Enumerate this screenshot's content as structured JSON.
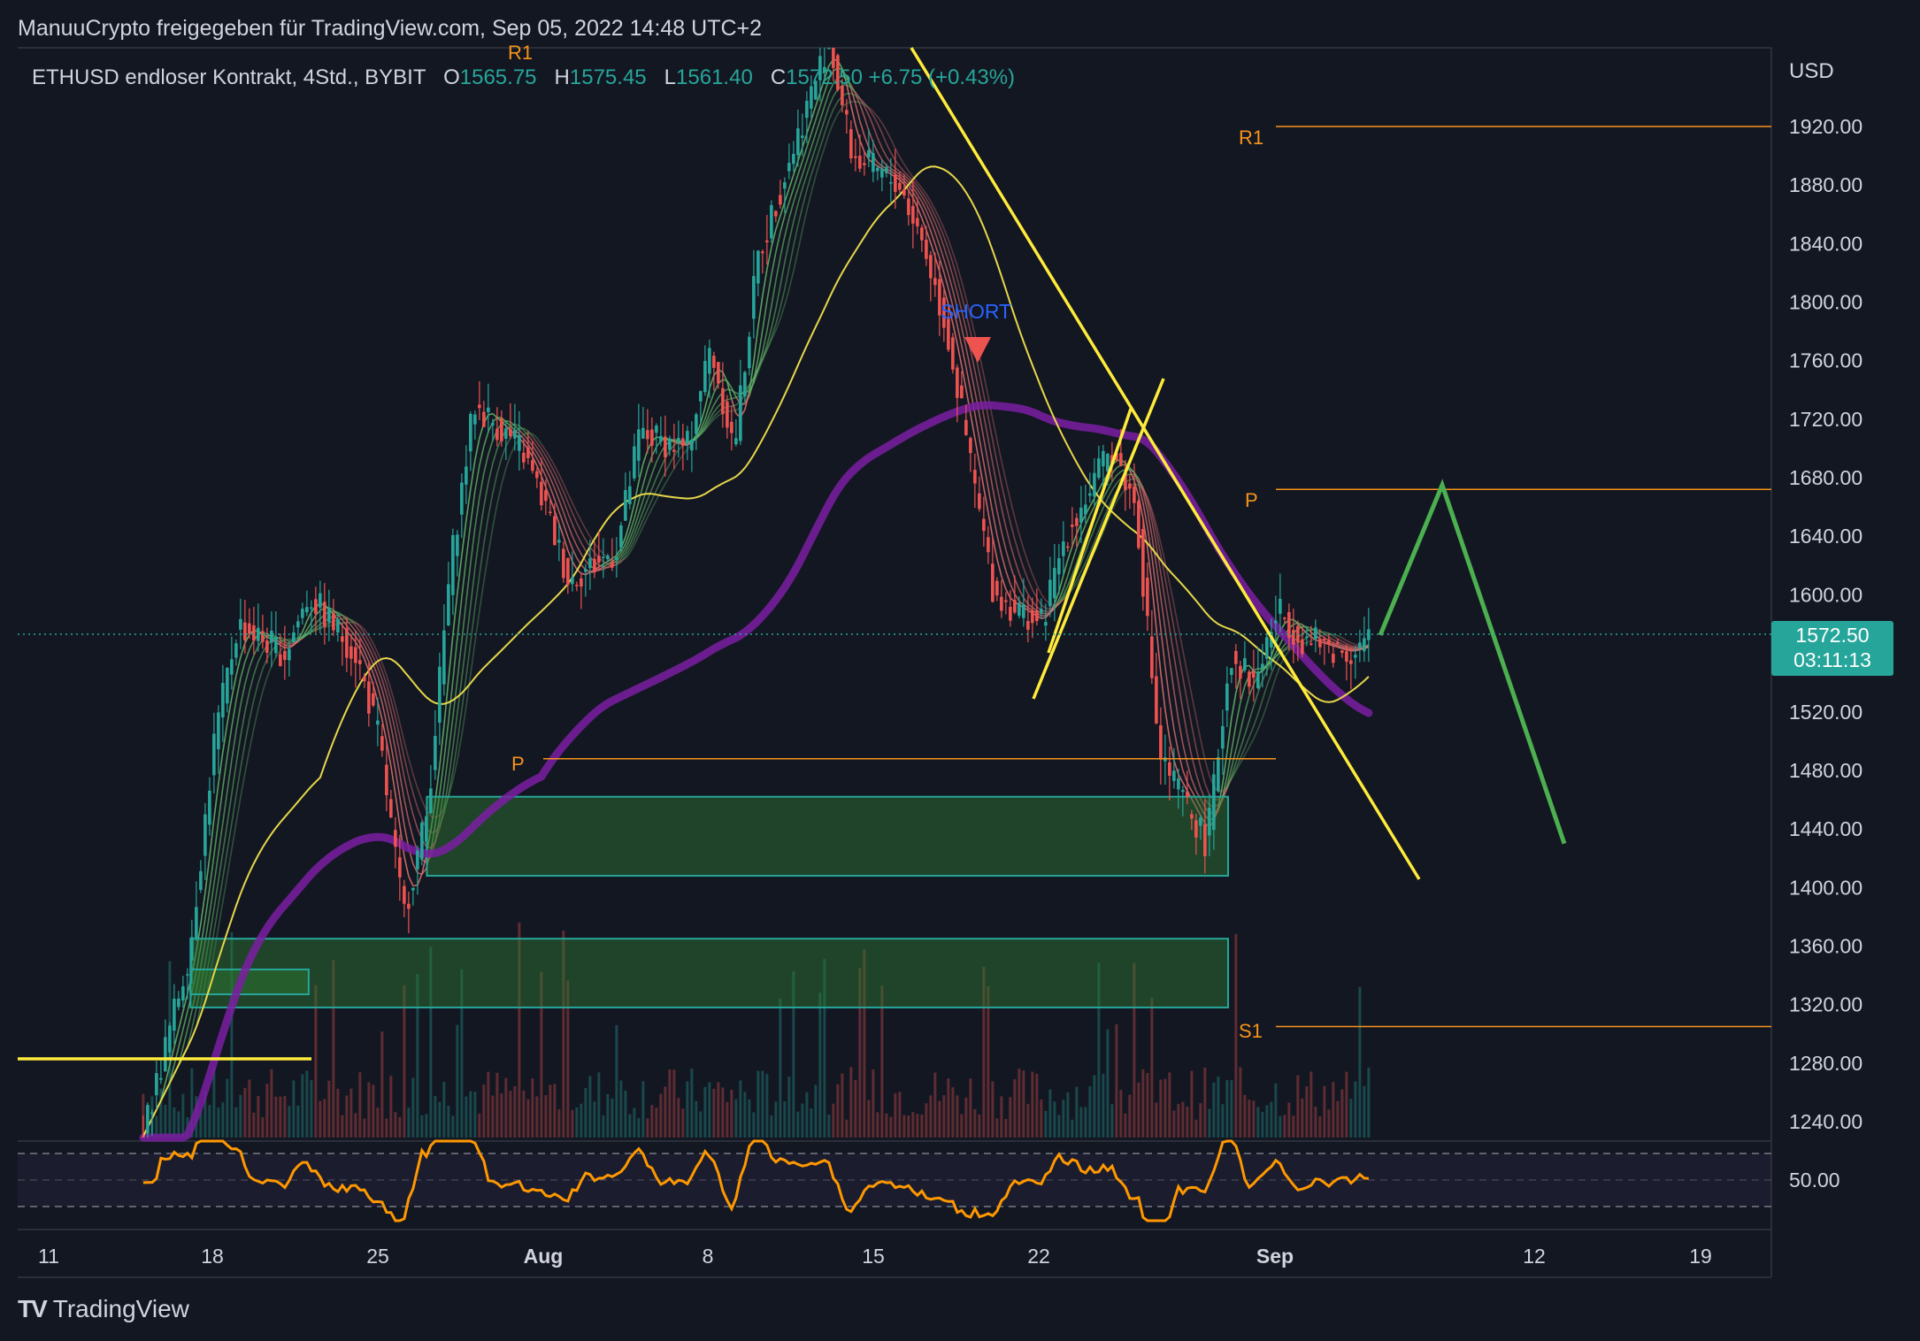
{
  "header": {
    "publisher": "ManuuCrypto freigegeben für TradingView.com, Sep 05, 2022 14:48 UTC+2"
  },
  "legend": {
    "symbol": "ETHUSD endloser Kontrakt, 4Std., BYBIT",
    "o_label": "O",
    "o_value": "1565.75",
    "h_label": "H",
    "h_value": "1575.45",
    "l_label": "L",
    "l_value": "1561.40",
    "c_label": "C",
    "c_value": "1572.50",
    "change": "+6.75 (+0.43%)"
  },
  "price_axis": {
    "currency": "USD",
    "ticks": [
      "1920.00",
      "1880.00",
      "1840.00",
      "1800.00",
      "1760.00",
      "1720.00",
      "1680.00",
      "1640.00",
      "1600.00",
      "1560.00",
      "1520.00",
      "1480.00",
      "1440.00",
      "1400.00",
      "1360.00",
      "1320.00",
      "1280.00",
      "1240.00"
    ],
    "current_price": "1572.50",
    "countdown": "03:11:13"
  },
  "rsi_axis": {
    "tick": "50.00"
  },
  "time_axis": {
    "ticks": [
      {
        "label": "11",
        "bold": false
      },
      {
        "label": "18",
        "bold": false
      },
      {
        "label": "25",
        "bold": false
      },
      {
        "label": "Aug",
        "bold": true
      },
      {
        "label": "8",
        "bold": false
      },
      {
        "label": "15",
        "bold": false
      },
      {
        "label": "22",
        "bold": false
      },
      {
        "label": "Sep",
        "bold": true
      },
      {
        "label": "12",
        "bold": false
      },
      {
        "label": "19",
        "bold": false
      }
    ]
  },
  "annotations": {
    "r1_top": "R1",
    "r1": "R1",
    "p_upper": "P",
    "p_lower": "P",
    "s1": "S1",
    "short": "SHORT"
  },
  "colors": {
    "background": "#131722",
    "up": "#26a69a",
    "down": "#ef5350",
    "pivot": "#f7931a",
    "trendline": "#ffeb3b",
    "projection": "#4caf50",
    "ma200": "#7b1fa2",
    "ma_yellow": "#e6d74a",
    "short_label": "#2962ff"
  },
  "chart_data": {
    "type": "candlestick",
    "symbol": "ETHUSD",
    "timeframe": "4h",
    "ylim": [
      1220,
      1960
    ],
    "price_ticks": [
      1920,
      1880,
      1840,
      1800,
      1760,
      1720,
      1680,
      1640,
      1600,
      1560,
      1520,
      1480,
      1440,
      1400,
      1360,
      1320,
      1280,
      1240
    ],
    "last": {
      "open": 1565.75,
      "high": 1575.45,
      "low": 1561.4,
      "close": 1572.5,
      "change": 6.75,
      "change_pct": 0.43
    },
    "pivots": {
      "R1": 1920,
      "P_upper": 1672,
      "P_lower": 1488,
      "S1": 1305
    },
    "close_path": [
      {
        "t": "Jul 15",
        "price": 1230
      },
      {
        "t": "Jul 17",
        "price": 1360
      },
      {
        "t": "Jul 18",
        "price": 1500
      },
      {
        "t": "Jul 19",
        "price": 1580
      },
      {
        "t": "Jul 21",
        "price": 1560
      },
      {
        "t": "Jul 22",
        "price": 1600
      },
      {
        "t": "Jul 24",
        "price": 1560
      },
      {
        "t": "Jul 25",
        "price": 1500
      },
      {
        "t": "Jul 26",
        "price": 1380
      },
      {
        "t": "Jul 27",
        "price": 1450
      },
      {
        "t": "Jul 28",
        "price": 1620
      },
      {
        "t": "Jul 29",
        "price": 1730
      },
      {
        "t": "Jul 31",
        "price": 1700
      },
      {
        "t": "Aug 1",
        "price": 1660
      },
      {
        "t": "Aug 2",
        "price": 1610
      },
      {
        "t": "Aug 4",
        "price": 1630
      },
      {
        "t": "Aug 5",
        "price": 1710
      },
      {
        "t": "Aug 7",
        "price": 1700
      },
      {
        "t": "Aug 8",
        "price": 1770
      },
      {
        "t": "Aug 9",
        "price": 1700
      },
      {
        "t": "Aug 10",
        "price": 1830
      },
      {
        "t": "Aug 11",
        "price": 1880
      },
      {
        "t": "Aug 13",
        "price": 1980
      },
      {
        "t": "Aug 14",
        "price": 1900
      },
      {
        "t": "Aug 16",
        "price": 1880
      },
      {
        "t": "Aug 17",
        "price": 1840
      },
      {
        "t": "Aug 18",
        "price": 1780
      },
      {
        "t": "Aug 19",
        "price": 1690
      },
      {
        "t": "Aug 20",
        "price": 1600
      },
      {
        "t": "Aug 22",
        "price": 1580
      },
      {
        "t": "Aug 23",
        "price": 1640
      },
      {
        "t": "Aug 25",
        "price": 1700
      },
      {
        "t": "Aug 26",
        "price": 1660
      },
      {
        "t": "Aug 27",
        "price": 1490
      },
      {
        "t": "Aug 28",
        "price": 1460
      },
      {
        "t": "Aug 29",
        "price": 1430
      },
      {
        "t": "Aug 30",
        "price": 1560
      },
      {
        "t": "Aug 31",
        "price": 1540
      },
      {
        "t": "Sep 1",
        "price": 1590
      },
      {
        "t": "Sep 2",
        "price": 1570
      },
      {
        "t": "Sep 3",
        "price": 1565
      },
      {
        "t": "Sep 4",
        "price": 1560
      },
      {
        "t": "Sep 5",
        "price": 1572.5
      }
    ],
    "projection": [
      {
        "t": "Sep 5",
        "price": 1572.5
      },
      {
        "t": "Sep 7",
        "price": 1675
      },
      {
        "t": "Sep 12",
        "price": 1430
      }
    ],
    "demand_zones": [
      {
        "from": "Jul 27",
        "to": "Aug 29",
        "low": 1408,
        "high": 1462
      },
      {
        "from": "Jul 17",
        "to": "Aug 29",
        "low": 1318,
        "high": 1365
      },
      {
        "from": "Jul 17",
        "to": "Jul 22",
        "low": 1327,
        "high": 1344
      }
    ],
    "rsi": {
      "level": 50,
      "last": 50
    }
  }
}
